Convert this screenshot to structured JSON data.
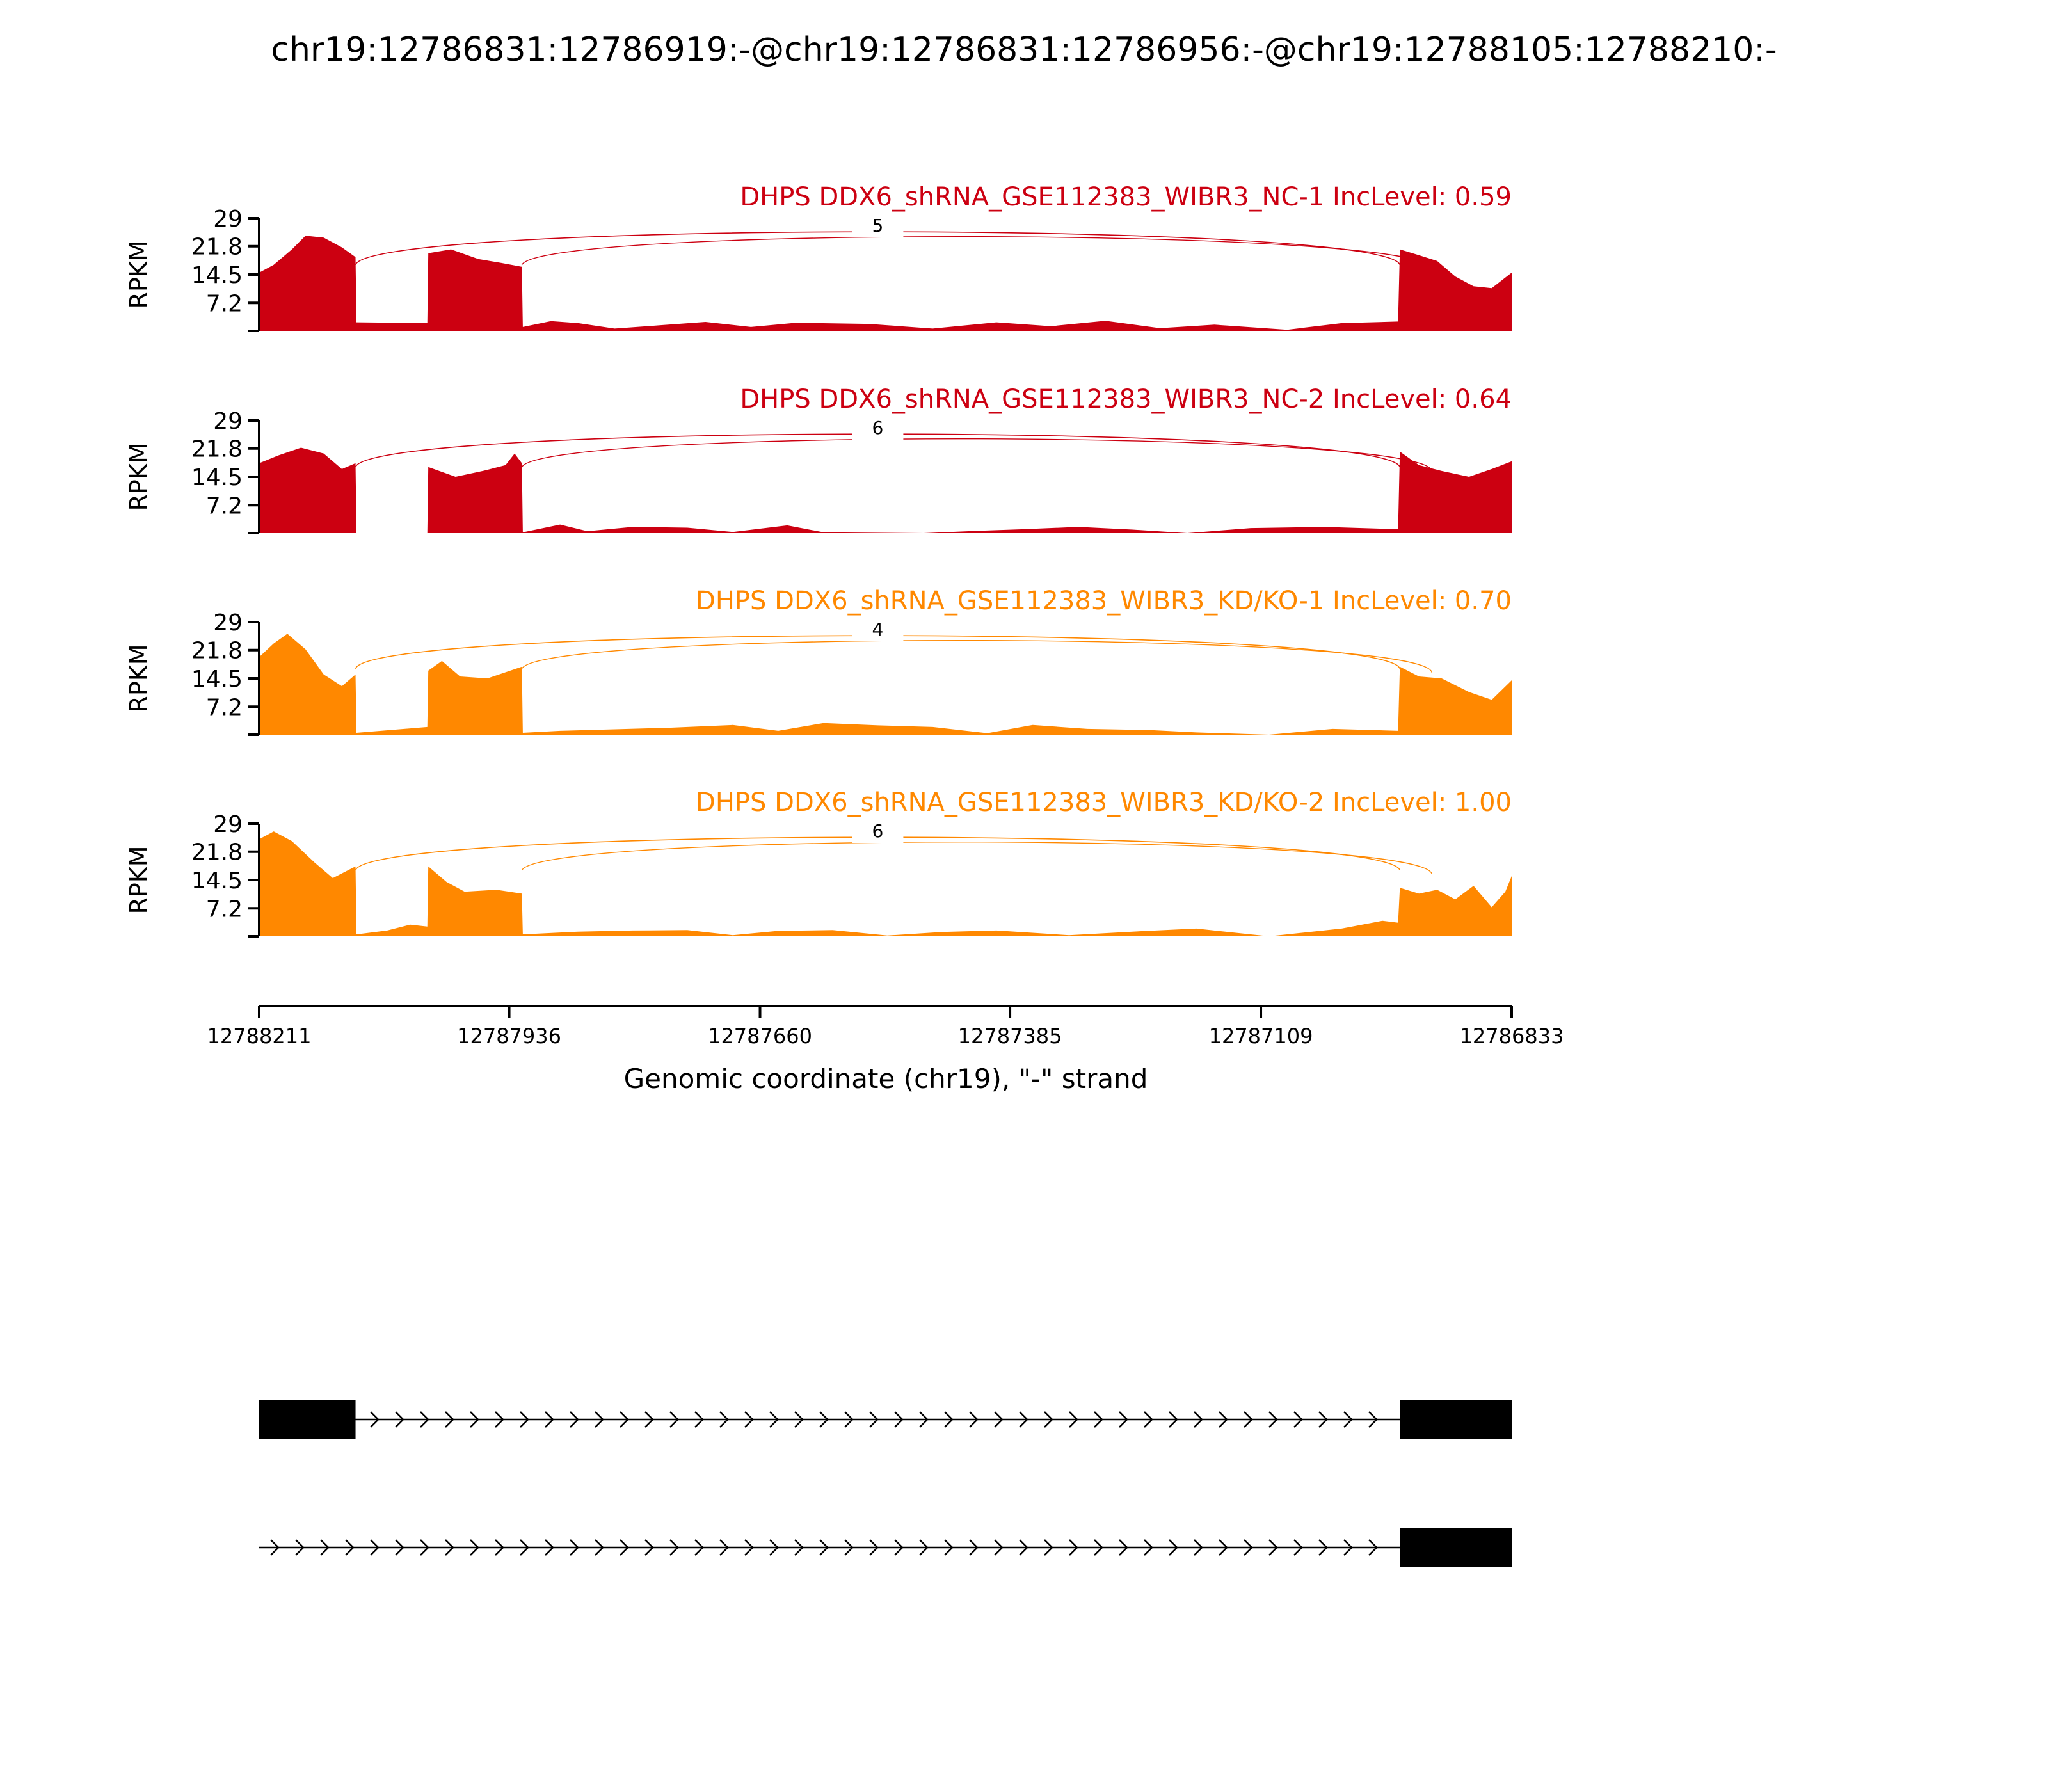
{
  "title": "chr19:12786831:12786919:-@chr19:12786831:12786956:-@chr19:12788105:12788210:-",
  "chart_data": {
    "type": "area",
    "xlabel": "Genomic coordinate (chr19), \"-\" strand",
    "ylabel": "RPKM",
    "xlim": [
      12788211,
      12786833
    ],
    "x_ticks": [
      "12788211",
      "12787936",
      "12787660",
      "12787385",
      "12787109",
      "12786833"
    ],
    "ylim": [
      0,
      29
    ],
    "y_ticks": [
      "7.2",
      "14.5",
      "21.8",
      "29"
    ],
    "exon_regions": [
      [
        12788211,
        12788105
      ],
      [
        12788025,
        12787922
      ],
      [
        12786956,
        12786833
      ]
    ],
    "tracks": [
      {
        "name": "DHPS DDX6_shRNA_GSE112383_WIBR3_NC-1 IncLevel: 0.59",
        "color": "#cc0011",
        "junction_count": "5",
        "coverage": [
          {
            "x": 12788211,
            "y": 15.0
          },
          {
            "x": 12788195,
            "y": 17.0
          },
          {
            "x": 12788175,
            "y": 21.0
          },
          {
            "x": 12788160,
            "y": 24.5
          },
          {
            "x": 12788140,
            "y": 24.0
          },
          {
            "x": 12788120,
            "y": 21.5
          },
          {
            "x": 12788105,
            "y": 19.0
          },
          {
            "x": 12788104,
            "y": 2.2
          },
          {
            "x": 12788026,
            "y": 2.0
          },
          {
            "x": 12788025,
            "y": 20.0
          },
          {
            "x": 12788000,
            "y": 21.0
          },
          {
            "x": 12787970,
            "y": 18.5
          },
          {
            "x": 12787945,
            "y": 17.5
          },
          {
            "x": 12787922,
            "y": 16.5
          },
          {
            "x": 12787921,
            "y": 1.0
          },
          {
            "x": 12787890,
            "y": 2.5
          },
          {
            "x": 12787860,
            "y": 2.0
          },
          {
            "x": 12787820,
            "y": 0.6
          },
          {
            "x": 12787720,
            "y": 2.3
          },
          {
            "x": 12787670,
            "y": 1.0
          },
          {
            "x": 12787620,
            "y": 2.1
          },
          {
            "x": 12787540,
            "y": 1.8
          },
          {
            "x": 12787470,
            "y": 0.6
          },
          {
            "x": 12787400,
            "y": 2.2
          },
          {
            "x": 12787340,
            "y": 1.2
          },
          {
            "x": 12787280,
            "y": 2.6
          },
          {
            "x": 12787220,
            "y": 0.7
          },
          {
            "x": 12787160,
            "y": 1.6
          },
          {
            "x": 12787080,
            "y": 0.3
          },
          {
            "x": 12787020,
            "y": 2.0
          },
          {
            "x": 12786958,
            "y": 2.4
          },
          {
            "x": 12786956,
            "y": 21.0
          },
          {
            "x": 12786935,
            "y": 19.5
          },
          {
            "x": 12786915,
            "y": 18.0
          },
          {
            "x": 12786895,
            "y": 14.0
          },
          {
            "x": 12786875,
            "y": 11.5
          },
          {
            "x": 12786855,
            "y": 11.0
          },
          {
            "x": 12786833,
            "y": 15.0
          }
        ]
      },
      {
        "name": "DHPS DDX6_shRNA_GSE112383_WIBR3_NC-2 IncLevel: 0.64",
        "color": "#cc0011",
        "junction_count": "6",
        "coverage": [
          {
            "x": 12788211,
            "y": 18.0
          },
          {
            "x": 12788190,
            "y": 20.0
          },
          {
            "x": 12788165,
            "y": 22.0
          },
          {
            "x": 12788140,
            "y": 20.5
          },
          {
            "x": 12788120,
            "y": 16.5
          },
          {
            "x": 12788105,
            "y": 18.0
          },
          {
            "x": 12788104,
            "y": 0.0
          },
          {
            "x": 12788026,
            "y": 0.0
          },
          {
            "x": 12788025,
            "y": 17.0
          },
          {
            "x": 12787995,
            "y": 14.5
          },
          {
            "x": 12787965,
            "y": 16.0
          },
          {
            "x": 12787940,
            "y": 17.5
          },
          {
            "x": 12787930,
            "y": 20.5
          },
          {
            "x": 12787922,
            "y": 18.0
          },
          {
            "x": 12787921,
            "y": 0.2
          },
          {
            "x": 12787880,
            "y": 2.2
          },
          {
            "x": 12787850,
            "y": 0.5
          },
          {
            "x": 12787800,
            "y": 1.6
          },
          {
            "x": 12787740,
            "y": 1.4
          },
          {
            "x": 12787690,
            "y": 0.3
          },
          {
            "x": 12787630,
            "y": 2.0
          },
          {
            "x": 12787590,
            "y": 0.2
          },
          {
            "x": 12787480,
            "y": 0.0
          },
          {
            "x": 12787420,
            "y": 0.6
          },
          {
            "x": 12787370,
            "y": 1.0
          },
          {
            "x": 12787310,
            "y": 1.6
          },
          {
            "x": 12787250,
            "y": 0.9
          },
          {
            "x": 12787190,
            "y": 0.0
          },
          {
            "x": 12787120,
            "y": 1.3
          },
          {
            "x": 12787040,
            "y": 1.6
          },
          {
            "x": 12786958,
            "y": 1.0
          },
          {
            "x": 12786956,
            "y": 21.0
          },
          {
            "x": 12786935,
            "y": 17.5
          },
          {
            "x": 12786910,
            "y": 16.0
          },
          {
            "x": 12786880,
            "y": 14.5
          },
          {
            "x": 12786855,
            "y": 16.5
          },
          {
            "x": 12786833,
            "y": 18.5
          }
        ]
      },
      {
        "name": "DHPS DDX6_shRNA_GSE112383_WIBR3_KD/KO-1 IncLevel: 0.70",
        "color": "#ff8800",
        "junction_count": "4",
        "coverage": [
          {
            "x": 12788211,
            "y": 20.0
          },
          {
            "x": 12788195,
            "y": 23.5
          },
          {
            "x": 12788180,
            "y": 26.0
          },
          {
            "x": 12788160,
            "y": 22.0
          },
          {
            "x": 12788140,
            "y": 15.5
          },
          {
            "x": 12788120,
            "y": 12.5
          },
          {
            "x": 12788105,
            "y": 15.5
          },
          {
            "x": 12788104,
            "y": 0.5
          },
          {
            "x": 12788026,
            "y": 2.0
          },
          {
            "x": 12788025,
            "y": 16.5
          },
          {
            "x": 12788010,
            "y": 19.0
          },
          {
            "x": 12787990,
            "y": 15.0
          },
          {
            "x": 12787960,
            "y": 14.5
          },
          {
            "x": 12787922,
            "y": 17.5
          },
          {
            "x": 12787921,
            "y": 0.5
          },
          {
            "x": 12787880,
            "y": 1.0
          },
          {
            "x": 12787820,
            "y": 1.4
          },
          {
            "x": 12787760,
            "y": 1.8
          },
          {
            "x": 12787690,
            "y": 2.5
          },
          {
            "x": 12787640,
            "y": 1.0
          },
          {
            "x": 12787590,
            "y": 3.0
          },
          {
            "x": 12787530,
            "y": 2.4
          },
          {
            "x": 12787470,
            "y": 2.0
          },
          {
            "x": 12787410,
            "y": 0.4
          },
          {
            "x": 12787360,
            "y": 2.5
          },
          {
            "x": 12787300,
            "y": 1.5
          },
          {
            "x": 12787230,
            "y": 1.2
          },
          {
            "x": 12787180,
            "y": 0.6
          },
          {
            "x": 12787100,
            "y": 0.0
          },
          {
            "x": 12787030,
            "y": 1.5
          },
          {
            "x": 12786958,
            "y": 1.0
          },
          {
            "x": 12786956,
            "y": 17.5
          },
          {
            "x": 12786935,
            "y": 15.0
          },
          {
            "x": 12786910,
            "y": 14.5
          },
          {
            "x": 12786880,
            "y": 11.0
          },
          {
            "x": 12786855,
            "y": 9.0
          },
          {
            "x": 12786833,
            "y": 14.0
          }
        ]
      },
      {
        "name": "DHPS DDX6_shRNA_GSE112383_WIBR3_KD/KO-2 IncLevel: 1.00",
        "color": "#ff8800",
        "junction_count": "6",
        "coverage": [
          {
            "x": 12788211,
            "y": 25.0
          },
          {
            "x": 12788195,
            "y": 27.0
          },
          {
            "x": 12788175,
            "y": 24.5
          },
          {
            "x": 12788150,
            "y": 19.0
          },
          {
            "x": 12788130,
            "y": 15.0
          },
          {
            "x": 12788105,
            "y": 18.0
          },
          {
            "x": 12788104,
            "y": 0.5
          },
          {
            "x": 12788070,
            "y": 1.5
          },
          {
            "x": 12788045,
            "y": 3.0
          },
          {
            "x": 12788026,
            "y": 2.5
          },
          {
            "x": 12788025,
            "y": 18.0
          },
          {
            "x": 12788005,
            "y": 14.0
          },
          {
            "x": 12787985,
            "y": 11.5
          },
          {
            "x": 12787950,
            "y": 12.0
          },
          {
            "x": 12787922,
            "y": 11.0
          },
          {
            "x": 12787921,
            "y": 0.5
          },
          {
            "x": 12787860,
            "y": 1.2
          },
          {
            "x": 12787800,
            "y": 1.5
          },
          {
            "x": 12787740,
            "y": 1.6
          },
          {
            "x": 12787690,
            "y": 0.3
          },
          {
            "x": 12787640,
            "y": 1.4
          },
          {
            "x": 12787580,
            "y": 1.6
          },
          {
            "x": 12787520,
            "y": 0.2
          },
          {
            "x": 12787460,
            "y": 1.1
          },
          {
            "x": 12787400,
            "y": 1.5
          },
          {
            "x": 12787320,
            "y": 0.3
          },
          {
            "x": 12787250,
            "y": 1.2
          },
          {
            "x": 12787180,
            "y": 2.0
          },
          {
            "x": 12787100,
            "y": 0.0
          },
          {
            "x": 12787020,
            "y": 2.0
          },
          {
            "x": 12786975,
            "y": 4.0
          },
          {
            "x": 12786958,
            "y": 3.5
          },
          {
            "x": 12786956,
            "y": 12.5
          },
          {
            "x": 12786935,
            "y": 11.0
          },
          {
            "x": 12786915,
            "y": 12.0
          },
          {
            "x": 12786895,
            "y": 9.5
          },
          {
            "x": 12786875,
            "y": 13.0
          },
          {
            "x": 12786855,
            "y": 7.5
          },
          {
            "x": 12786840,
            "y": 11.5
          },
          {
            "x": 12786833,
            "y": 15.5
          }
        ]
      }
    ]
  },
  "gene_models": [
    {
      "exons": [
        [
          12788211,
          12788105
        ],
        [
          12786956,
          12786833
        ]
      ],
      "line_start": 12788211,
      "line_end": 12786956
    },
    {
      "exons": [
        [
          12786956,
          12786833
        ]
      ],
      "line_start": 12788211,
      "line_end": 12786956
    }
  ]
}
